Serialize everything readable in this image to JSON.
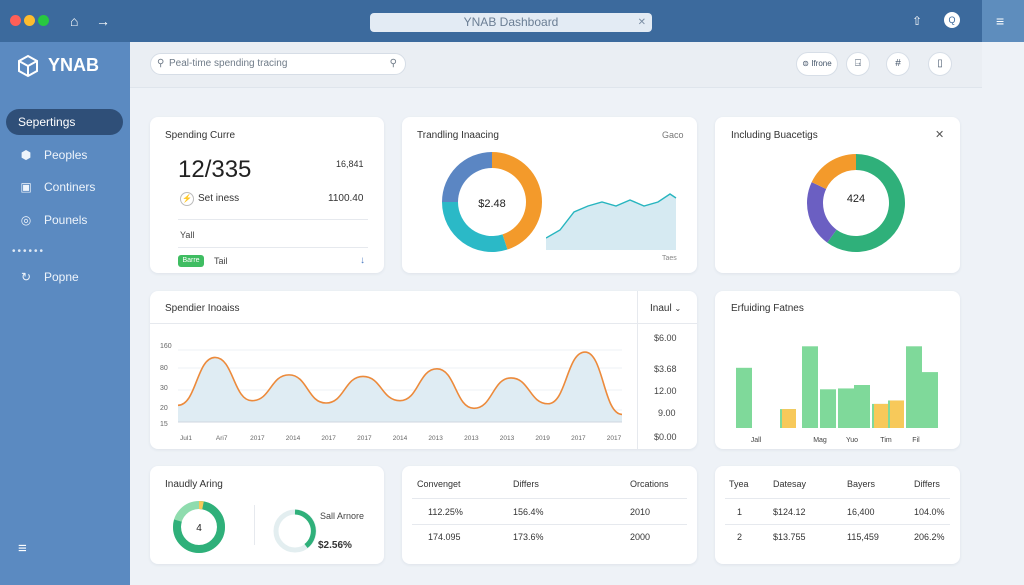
{
  "window": {
    "title": "YNAB Dashboard"
  },
  "colors": {
    "sidebar": "#5b8ac1",
    "titlebar": "#3c6a9d",
    "orange": "#f39a2b",
    "teal": "#2bb9c7",
    "blue": "#5b86c3",
    "green": "#2fb07a",
    "purple": "#6b5fc2",
    "yellow": "#f7c95a",
    "light_green": "#7fd99a"
  },
  "sidebar": {
    "logo": "YNAB",
    "items": [
      {
        "label": "Sepertings",
        "icon": "settings-icon",
        "active": true
      },
      {
        "label": "Peoples",
        "icon": "shield-icon"
      },
      {
        "label": "Continers",
        "icon": "calendar-icon"
      },
      {
        "label": "Pounels",
        "icon": "globe-icon"
      },
      {
        "label": "Popne",
        "icon": "refresh-icon"
      }
    ]
  },
  "search": {
    "placeholder": "Peal-time spending tracing"
  },
  "toolbar": {
    "home_label": "Ifrone"
  },
  "spending_card": {
    "title": "Spending Curre",
    "big_value": "12/335",
    "side_value": "16,841",
    "set_label": "Set iness",
    "set_value": "1100.40",
    "sub_label": "Yall",
    "badge": "Barre",
    "tail_label": "Tail"
  },
  "trending_card": {
    "title": "Trandling Inaacing",
    "corner": "Gaco",
    "donut_value": "$2.48",
    "footer": "Taes"
  },
  "budget_card": {
    "title": "Including Buacetigs",
    "donut_value": "424"
  },
  "line_card": {
    "title": "Spendier Inoaiss",
    "dropdown": "Inaul",
    "y_ticks": [
      "160",
      "80",
      "30",
      "20",
      "15"
    ],
    "x_ticks": [
      "Jul1",
      "Ari7",
      "2017",
      "2014",
      "2017",
      "2017",
      "2014",
      "2013",
      "2013",
      "2013",
      "2019",
      "2017",
      "2017"
    ],
    "right_values": [
      "$6.00",
      "$3.68",
      "12.00",
      "9.00",
      "$0.00"
    ]
  },
  "bar_card": {
    "title": "Erfuiding Fatnes",
    "labels": [
      "Jall",
      "Mag",
      "Yuo",
      "Tim",
      "Fil"
    ]
  },
  "ring_card": {
    "title": "Inaudly Aring",
    "ring_value": "4",
    "side_label": "Sall Arnore",
    "side_value": "$2.56%"
  },
  "table1": {
    "headers": [
      "Convenget",
      "Differs",
      "Orcations"
    ],
    "rows": [
      [
        "112.25%",
        "156.4%",
        "2010"
      ],
      [
        "174.095",
        "173.6%",
        "2000"
      ]
    ]
  },
  "table2": {
    "headers": [
      "Tyea",
      "Datesay",
      "Bayers",
      "Differs"
    ],
    "rows": [
      [
        "1",
        "$124.12",
        "16,400",
        "104.0%"
      ],
      [
        "2",
        "$13.755",
        "115,459",
        "206.2%"
      ]
    ]
  },
  "chart_data": [
    {
      "type": "area",
      "title": "Spendier Inoaiss",
      "x": [
        "Jul1",
        "Ari7",
        "2017",
        "2014",
        "2017",
        "2017",
        "2014",
        "2013",
        "2013",
        "2013",
        "2019",
        "2017",
        "2017"
      ],
      "series": [
        {
          "values": [
            22,
            85,
            28,
            62,
            25,
            60,
            28,
            70,
            18,
            58,
            24,
            92,
            10
          ]
        }
      ]
    },
    {
      "type": "bar",
      "title": "Erfuiding Fatnes",
      "series": [
        {
          "values": [
            70,
            22,
            95,
            45,
            46,
            50,
            28,
            32,
            95,
            65
          ]
        },
        {
          "values": [
            0,
            22,
            0,
            0,
            0,
            0,
            28,
            32,
            0,
            0
          ]
        }
      ]
    },
    {
      "type": "pie",
      "title": "Trandling Inaacing",
      "slices": [
        {
          "name": "orange",
          "value": 45
        },
        {
          "name": "teal",
          "value": 30
        },
        {
          "name": "blue",
          "value": 25
        }
      ]
    },
    {
      "type": "pie",
      "title": "Including Buacetigs",
      "slices": [
        {
          "name": "green",
          "value": 60
        },
        {
          "name": "purple",
          "value": 22
        },
        {
          "name": "orange",
          "value": 18
        }
      ]
    }
  ]
}
